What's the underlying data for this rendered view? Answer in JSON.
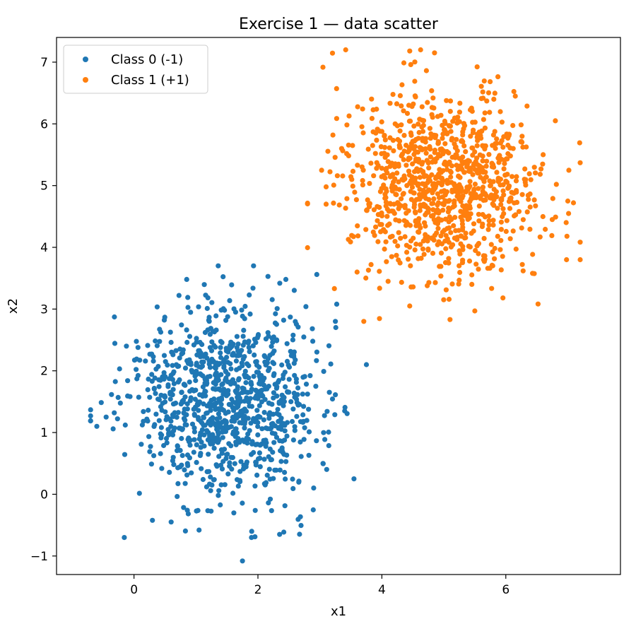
{
  "chart_data": {
    "type": "scatter",
    "title": "Exercise 1 — data scatter",
    "xlabel": "x1",
    "ylabel": "x2",
    "xlim": [
      -1.25,
      7.85
    ],
    "ylim": [
      -1.3,
      7.4
    ],
    "xticks": [
      0,
      2,
      4,
      6
    ],
    "yticks": [
      -1,
      0,
      1,
      2,
      3,
      4,
      5,
      6,
      7
    ],
    "ytick_labels": [
      "−1",
      "0",
      "1",
      "2",
      "3",
      "4",
      "5",
      "6",
      "7"
    ],
    "grid": false,
    "legend": "top-left",
    "series": [
      {
        "name": "Class 0 (-1)",
        "color": "#1f77b4",
        "center": [
          1.5,
          1.5
        ],
        "spread": 0.75,
        "count": 1000,
        "outliers": [
          [
            -0.6,
            1.1
          ],
          [
            -0.45,
            1.25
          ],
          [
            3.75,
            2.1
          ],
          [
            3.55,
            0.25
          ],
          [
            1.75,
            -1.08
          ],
          [
            0.85,
            3.48
          ],
          [
            2.45,
            3.48
          ],
          [
            2.95,
            3.56
          ],
          [
            3.25,
            2.8
          ],
          [
            3.05,
            0.5
          ],
          [
            3.4,
            1.35
          ],
          [
            1.05,
            -0.58
          ],
          [
            1.9,
            -0.6
          ],
          [
            0.6,
            -0.45
          ],
          [
            2.35,
            -0.65
          ]
        ]
      },
      {
        "name": "Class 1 (+1)",
        "color": "#ff7f0e",
        "center": [
          5.0,
          5.0
        ],
        "spread": 0.75,
        "count": 1000,
        "outliers": [
          [
            4.45,
            7.18
          ],
          [
            4.85,
            7.15
          ],
          [
            3.1,
            4.98
          ],
          [
            3.1,
            4.7
          ],
          [
            3.6,
            3.6
          ],
          [
            4.45,
            3.05
          ],
          [
            5.1,
            2.83
          ],
          [
            7.2,
            5.37
          ],
          [
            7.0,
            4.75
          ],
          [
            6.98,
            3.8
          ],
          [
            6.8,
            6.05
          ],
          [
            4.1,
            3.45
          ],
          [
            3.35,
            5.6
          ],
          [
            6.75,
            4.45
          ],
          [
            5.5,
            2.97
          ]
        ]
      }
    ]
  }
}
